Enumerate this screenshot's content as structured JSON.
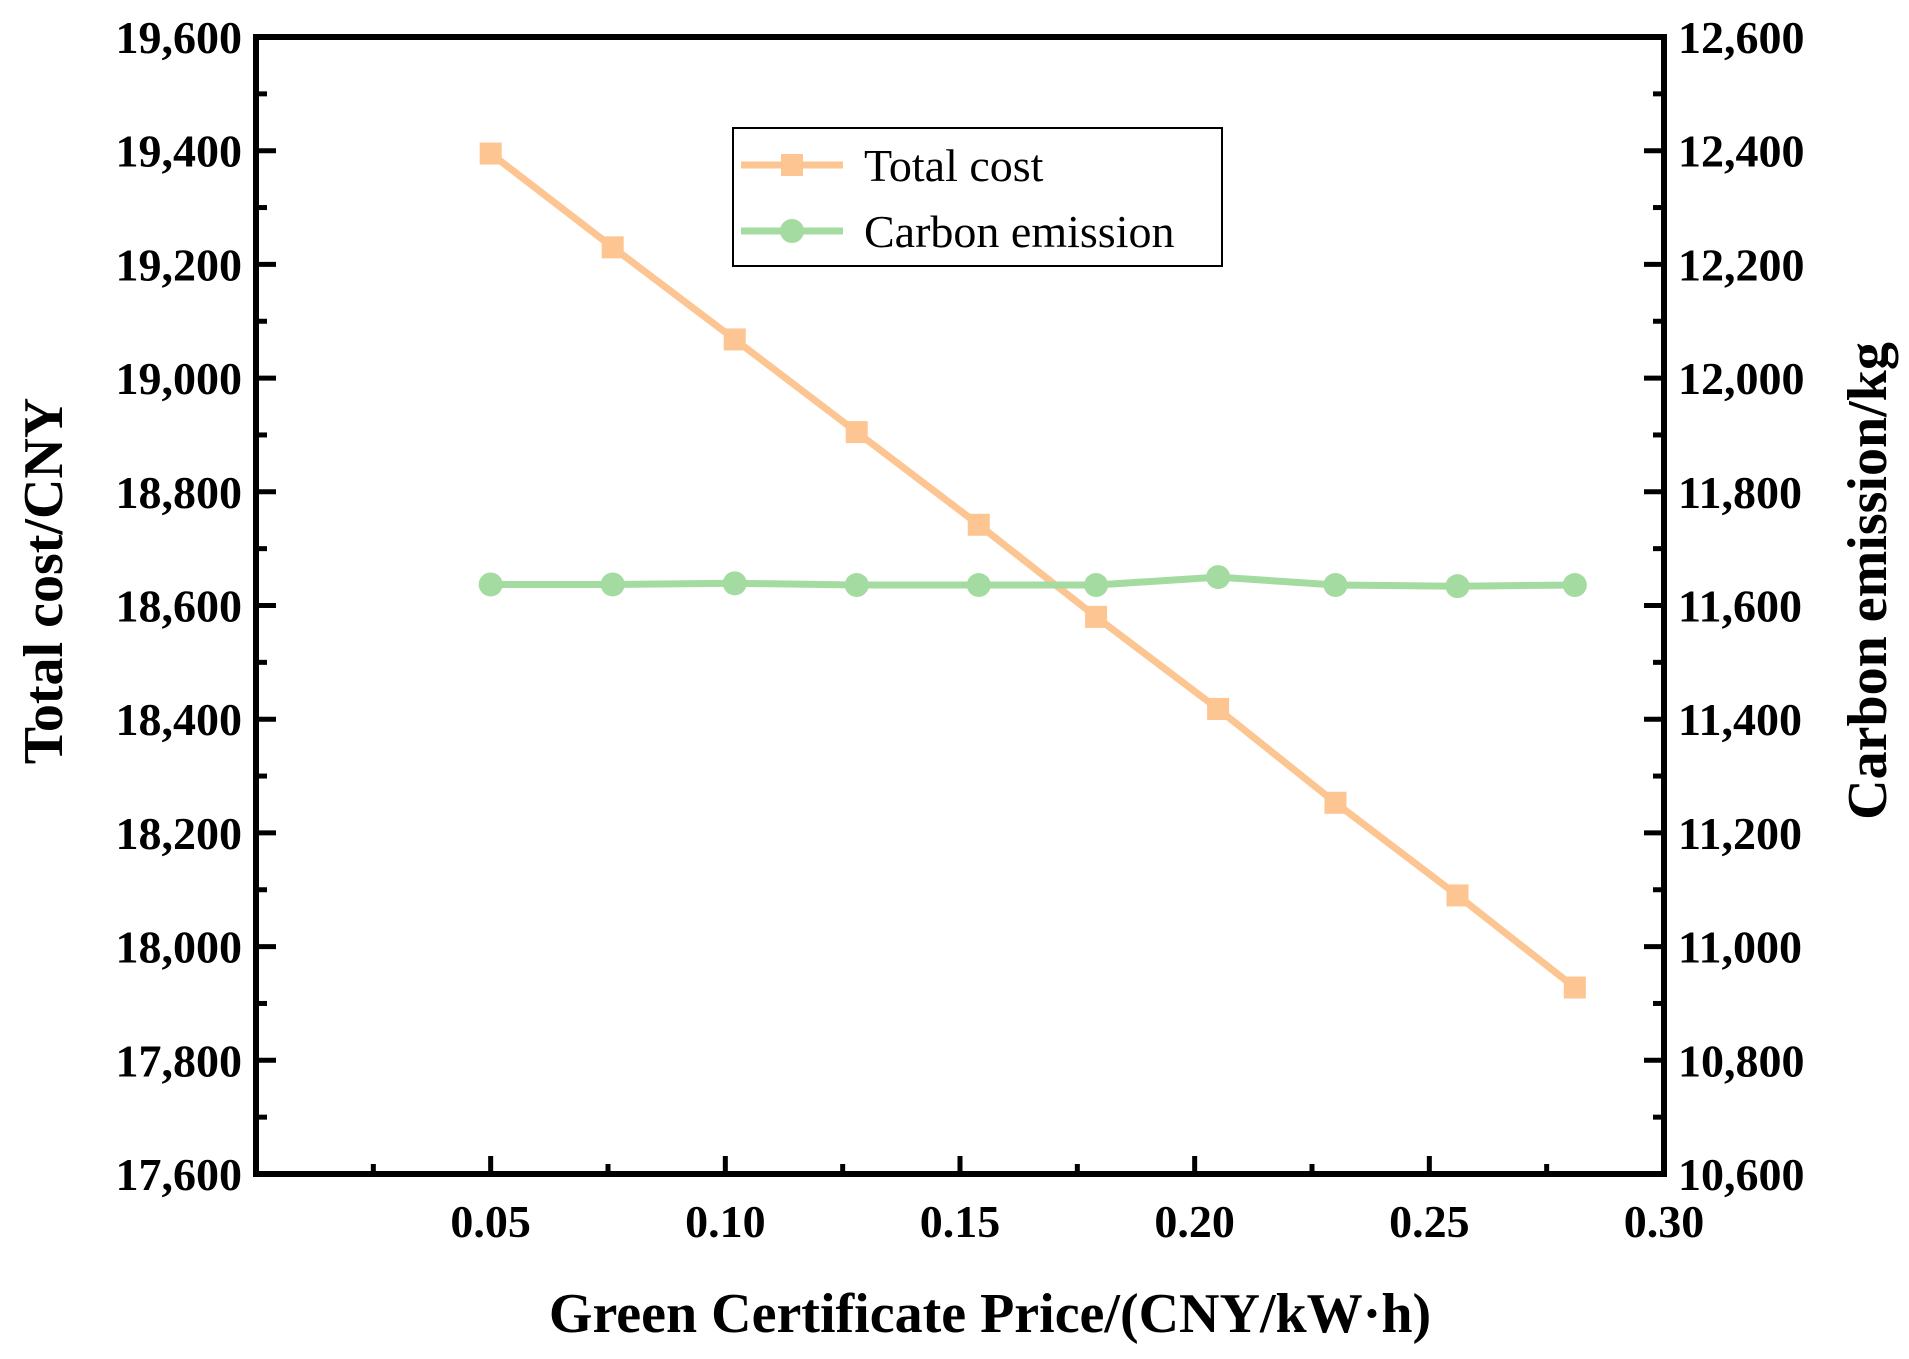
{
  "chart_data": {
    "type": "line",
    "x": [
      0.05,
      0.076,
      0.102,
      0.128,
      0.154,
      0.179,
      0.205,
      0.23,
      0.256,
      0.281
    ],
    "xlim": [
      0.0,
      0.3
    ],
    "xticks": [
      0.05,
      0.1,
      0.15,
      0.2,
      0.25,
      0.3
    ],
    "xtick_labels": [
      "0.05",
      "0.10",
      "0.15",
      "0.20",
      "0.25",
      "0.30"
    ],
    "xlabel": "Green Certificate Price/(CNY/kW·h)",
    "ylabel_left": "Total cost/CNY",
    "ylabel_right": "Carbon emission/kg",
    "ylim_left": [
      17600,
      19600
    ],
    "ylim_right": [
      10600,
      12600
    ],
    "yticks_left": [
      17600,
      17800,
      18000,
      18200,
      18400,
      18600,
      18800,
      19000,
      19200,
      19400,
      19600
    ],
    "yticks_right": [
      10600,
      10800,
      11000,
      11200,
      11400,
      11600,
      11800,
      12000,
      12200,
      12400,
      12600
    ],
    "ytick_labels_left": [
      "17,600",
      "17,800",
      "18,000",
      "18,200",
      "18,400",
      "18,600",
      "18,800",
      "19,000",
      "19,200",
      "19,400",
      "19,600"
    ],
    "ytick_labels_right": [
      "10,600",
      "10,800",
      "11,000",
      "11,200",
      "11,400",
      "11,600",
      "11,800",
      "12,000",
      "12,200",
      "12,400",
      "12,600"
    ],
    "grid": false,
    "legend_position": "top-center",
    "series": [
      {
        "name": "Total cost",
        "axis": "left",
        "marker": "square",
        "color": "#FCC591",
        "values": [
          19395,
          19230,
          19068,
          18905,
          18742,
          18580,
          18418,
          18253,
          18090,
          17928
        ]
      },
      {
        "name": "Carbon emission",
        "axis": "right",
        "marker": "circle",
        "color": "#A3DBA0",
        "values": [
          11637,
          11637,
          11639,
          11636,
          11636,
          11636,
          11650,
          11636,
          11634,
          11636
        ]
      }
    ]
  }
}
